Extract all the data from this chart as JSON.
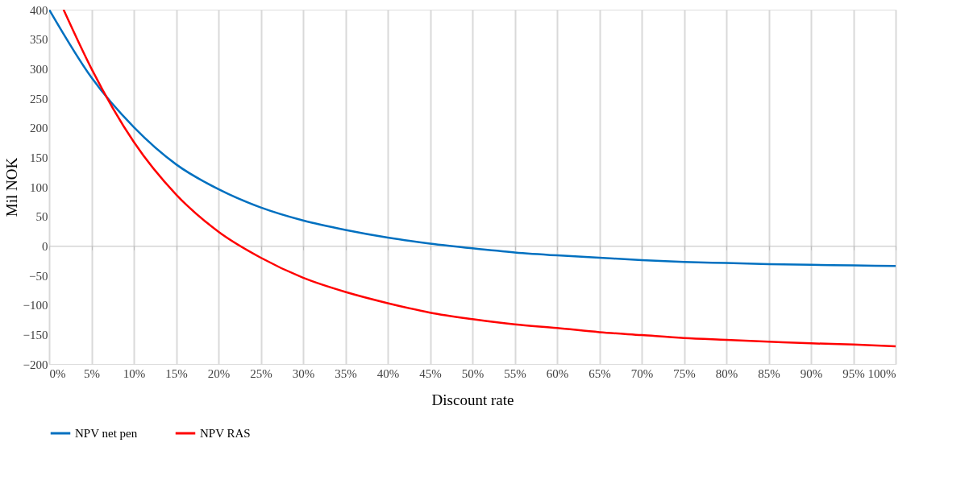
{
  "chart_data": {
    "type": "line",
    "xlabel": "Discount rate",
    "ylabel": "Mil NOK",
    "xlim": [
      0,
      100
    ],
    "xticks": [
      {
        "value": 0,
        "label": "0%"
      },
      {
        "value": 5,
        "label": "5%"
      },
      {
        "value": 10,
        "label": "10%"
      },
      {
        "value": 15,
        "label": "15%"
      },
      {
        "value": 20,
        "label": "20%"
      },
      {
        "value": 25,
        "label": "25%"
      },
      {
        "value": 30,
        "label": "30%"
      },
      {
        "value": 35,
        "label": "35%"
      },
      {
        "value": 40,
        "label": "40%"
      },
      {
        "value": 45,
        "label": "45%"
      },
      {
        "value": 50,
        "label": "50%"
      },
      {
        "value": 55,
        "label": "55%"
      },
      {
        "value": 60,
        "label": "60%"
      },
      {
        "value": 65,
        "label": "65%"
      },
      {
        "value": 70,
        "label": "70%"
      },
      {
        "value": 75,
        "label": "75%"
      },
      {
        "value": 80,
        "label": "80%"
      },
      {
        "value": 85,
        "label": "85%"
      },
      {
        "value": 90,
        "label": "90%"
      },
      {
        "value": 95,
        "label": "95%"
      },
      {
        "value": 100,
        "label": "100%"
      }
    ],
    "ylim": [
      -200,
      400
    ],
    "yticks": [
      -200,
      -150,
      -100,
      -50,
      0,
      50,
      100,
      150,
      200,
      250,
      300,
      350,
      400
    ],
    "grid": "x",
    "legend": "bottom",
    "marker": "none",
    "line_style": "solid",
    "series": [
      {
        "name": "NPV net pen",
        "color": "#0070c0",
        "x": [
          0,
          5,
          10,
          15,
          20,
          25,
          30,
          35,
          40,
          45,
          50,
          55,
          60,
          65,
          70,
          75,
          80,
          85,
          90,
          95,
          100
        ],
        "values": [
          400,
          285,
          201,
          138,
          96,
          65,
          43,
          27,
          14,
          4,
          -4,
          -11,
          -16,
          -20,
          -24,
          -27,
          -29,
          -31,
          -32,
          -33,
          -34
        ]
      },
      {
        "name": "NPV RAS",
        "color": "#ff0000",
        "x": [
          1.7,
          5,
          10,
          15,
          20,
          25,
          30,
          35,
          40,
          45,
          50,
          55,
          60,
          65,
          70,
          75,
          80,
          85,
          90,
          95,
          100
        ],
        "values": [
          400,
          300,
          176,
          87,
          24,
          -20,
          -54,
          -78,
          -97,
          -113,
          -124,
          -133,
          -139,
          -146,
          -151,
          -156,
          -159,
          -162,
          -165,
          -167,
          -170
        ]
      }
    ]
  }
}
